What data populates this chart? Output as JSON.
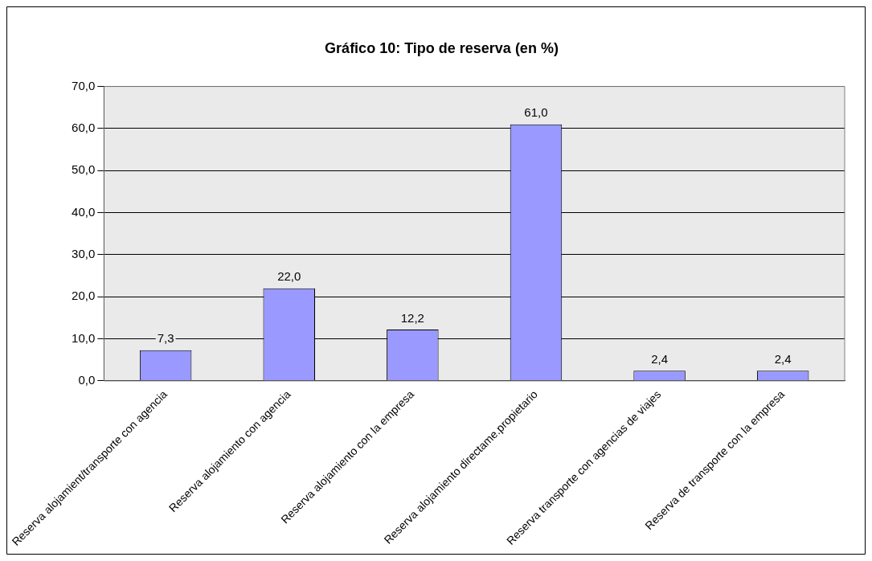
{
  "chart_data": {
    "type": "bar",
    "title": "Gráfico 10: Tipo de reserva (en %)",
    "categories": [
      "Reserva alojamient/transporte con agencia",
      "Reserva alojamiento con agencia",
      "Reserva alojamiento con la empresa",
      "Reserva alojamiento directame.propietario",
      "Reserva transporte con agencias de viajes",
      "Reserva de transporte con la empresa"
    ],
    "values": [
      7.3,
      22.0,
      12.2,
      61.0,
      2.4,
      2.4
    ],
    "value_labels": [
      "7,3",
      "22,0",
      "12,2",
      "61,0",
      "2,4",
      "2,4"
    ],
    "color": "#9999ff",
    "ylim": [
      0,
      70
    ],
    "yticks": [
      {
        "value": 0,
        "label": "0,0"
      },
      {
        "value": 10,
        "label": "10,0"
      },
      {
        "value": 20,
        "label": "20,0"
      },
      {
        "value": 30,
        "label": "30,0"
      },
      {
        "value": 40,
        "label": "40,0"
      },
      {
        "value": 50,
        "label": "50,0"
      },
      {
        "value": 60,
        "label": "60,0"
      },
      {
        "value": 70,
        "label": "70,0"
      }
    ],
    "grid": "y",
    "legend": false
  }
}
